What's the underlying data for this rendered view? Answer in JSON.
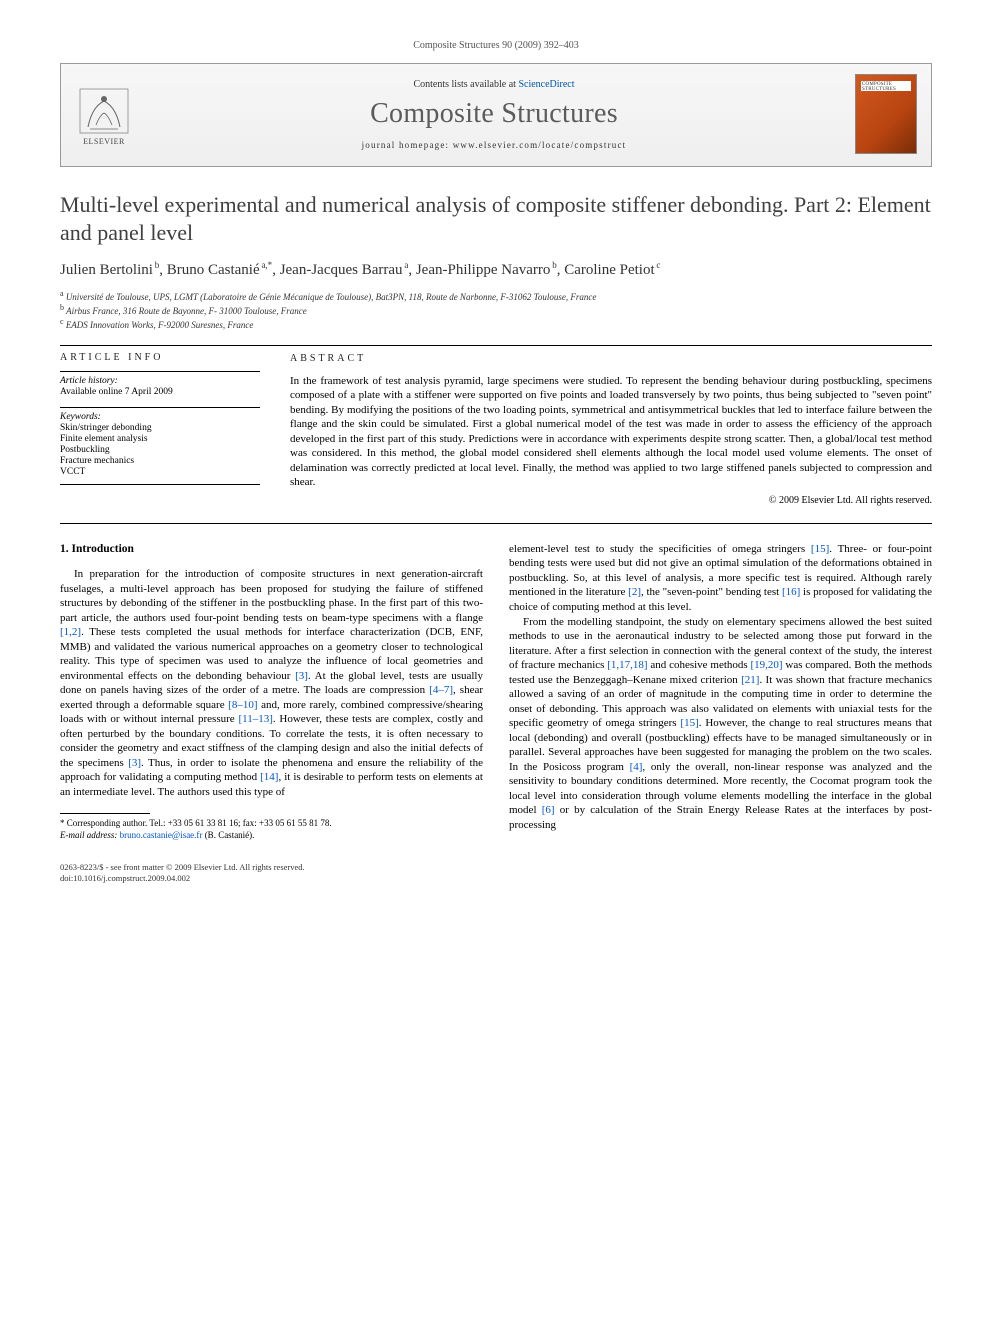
{
  "citation": "Composite Structures 90 (2009) 392–403",
  "header": {
    "contents_prefix": "Contents lists available at ",
    "contents_link": "ScienceDirect",
    "journal_name": "Composite Structures",
    "homepage_label": "journal homepage: ",
    "homepage_url": "www.elsevier.com/locate/compstruct",
    "publisher": "ELSEVIER",
    "cover_label": "COMPOSITE STRUCTURES"
  },
  "title": "Multi-level experimental and numerical analysis of composite stiffener debonding. Part 2: Element and panel level",
  "authors_html": "Julien Bertolini<sup> b</sup>, Bruno Castanié<sup> a,*</sup>, Jean-Jacques Barrau<sup> a</sup>, Jean-Philippe Navarro<sup> b</sup>, Caroline Petiot<sup> c</sup>",
  "affiliations": [
    {
      "sup": "a",
      "text": "Université de Toulouse, UPS, LGMT (Laboratoire de Génie Mécanique de Toulouse), Bat3PN, 118, Route de Narbonne, F-31062 Toulouse, France"
    },
    {
      "sup": "b",
      "text": "Airbus France, 316 Route de Bayonne, F- 31000 Toulouse, France"
    },
    {
      "sup": "c",
      "text": "EADS Innovation Works, F-92000 Suresnes, France"
    }
  ],
  "article_info": {
    "heading": "article info",
    "history_label": "Article history:",
    "history_line": "Available online 7 April 2009",
    "keywords_label": "Keywords:",
    "keywords": [
      "Skin/stringer debonding",
      "Finite element analysis",
      "Postbuckling",
      "Fracture mechanics",
      "VCCT"
    ]
  },
  "abstract": {
    "heading": "abstract",
    "text": "In the framework of test analysis pyramid, large specimens were studied. To represent the bending behaviour during postbuckling, specimens composed of a plate with a stiffener were supported on five points and loaded transversely by two points, thus being subjected to \"seven point\" bending. By modifying the positions of the two loading points, symmetrical and antisymmetrical buckles that led to interface failure between the flange and the skin could be simulated. First a global numerical model of the test was made in order to assess the efficiency of the approach developed in the first part of this study. Predictions were in accordance with experiments despite strong scatter. Then, a global/local test method was considered. In this method, the global model considered shell elements although the local model used volume elements. The onset of delamination was correctly predicted at local level. Finally, the method was applied to two large stiffened panels subjected to compression and shear.",
    "copyright": "© 2009 Elsevier Ltd. All rights reserved."
  },
  "body": {
    "section_heading": "1. Introduction",
    "left_col": "In preparation for the introduction of composite structures in next generation-aircraft fuselages, a multi-level approach has been proposed for studying the failure of stiffened structures by debonding of the stiffener in the postbuckling phase. In the first part of this two-part article, the authors used four-point bending tests on beam-type specimens with a flange <span class=\"ref\">[1,2]</span>. These tests completed the usual methods for interface characterization (DCB, ENF, MMB) and validated the various numerical approaches on a geometry closer to technological reality. This type of specimen was used to analyze the influence of local geometries and environmental effects on the debonding behaviour <span class=\"ref\">[3]</span>. At the global level, tests are usually done on panels having sizes of the order of a metre. The loads are compression <span class=\"ref\">[4–7]</span>, shear exerted through a deformable square <span class=\"ref\">[8–10]</span> and, more rarely, combined compressive/shearing loads with or without internal pressure <span class=\"ref\">[11–13]</span>. However, these tests are complex, costly and often perturbed by the boundary conditions. To correlate the tests, it is often necessary to consider the geometry and exact stiffness of the clamping design and also the initial defects of the specimens <span class=\"ref\">[3]</span>. Thus, in order to isolate the phenomena and ensure the reliability of the approach for validating a computing method <span class=\"ref\">[14]</span>, it is desirable to perform tests on elements at an intermediate level. The authors used this type of",
    "right_col_p1": "element-level test to study the specificities of omega stringers <span class=\"ref\">[15]</span>. Three- or four-point bending tests were used but did not give an optimal simulation of the deformations obtained in postbuckling. So, at this level of analysis, a more specific test is required. Although rarely mentioned in the literature <span class=\"ref\">[2]</span>, the \"seven-point\" bending test <span class=\"ref\">[16]</span> is proposed for validating the choice of computing method at this level.",
    "right_col_p2": "From the modelling standpoint, the study on elementary specimens allowed the best suited methods to use in the aeronautical industry to be selected among those put forward in the literature. After a first selection in connection with the general context of the study, the interest of fracture mechanics <span class=\"ref\">[1,17,18]</span> and cohesive methods <span class=\"ref\">[19,20]</span> was compared. Both the methods tested use the Benzeggagh–Kenane mixed criterion <span class=\"ref\">[21]</span>. It was shown that fracture mechanics allowed a saving of an order of magnitude in the computing time in order to determine the onset of debonding. This approach was also validated on elements with uniaxial tests for the specific geometry of omega stringers <span class=\"ref\">[15]</span>. However, the change to real structures means that local (debonding) and overall (postbuckling) effects have to be managed simultaneously or in parallel. Several approaches have been suggested for managing the problem on the two scales. In the Posicoss program <span class=\"ref\">[4]</span>, only the overall, non-linear response was analyzed and the sensitivity to boundary conditions determined. More recently, the Cocomat program took the local level into consideration through volume elements modelling the interface in the global model <span class=\"ref\">[6]</span> or by calculation of the Strain Energy Release Rates at the interfaces by post-processing"
  },
  "footnote": {
    "corresponding": "* Corresponding author. Tel.: +33 05 61 33 81 16; fax: +33 05 61 55 81 78.",
    "email_label": "E-mail address:",
    "email": "bruno.castanie@isae.fr",
    "email_who": "(B. Castanié)."
  },
  "bottom": {
    "line1": "0263-8223/$ - see front matter © 2009 Elsevier Ltd. All rights reserved.",
    "line2": "doi:10.1016/j.compstruct.2009.04.002"
  },
  "colors": {
    "link": "#0055cc",
    "title_gray": "#404040",
    "journal_gray": "#5b5b5b"
  }
}
